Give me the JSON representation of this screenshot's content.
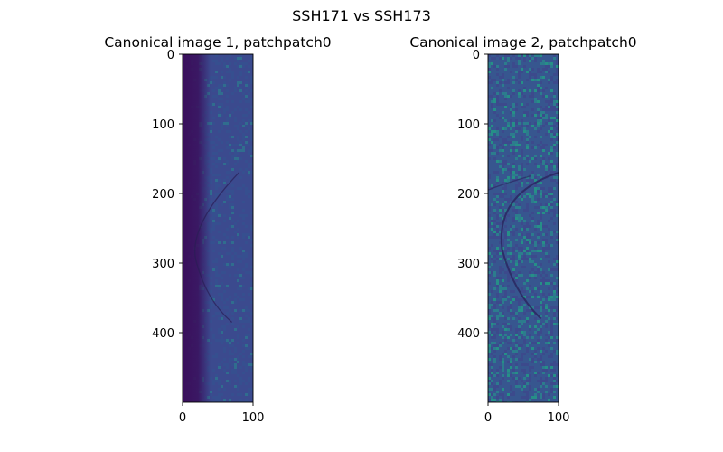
{
  "figure": {
    "title": "SSH171 vs SSH173"
  },
  "chart_data": [
    {
      "type": "heatmap",
      "title": "Canonical image 1, patchpatch0",
      "xlabel": "",
      "ylabel": "",
      "xlim": [
        0,
        100
      ],
      "ylim": [
        500,
        0
      ],
      "x_ticks": [
        0,
        100
      ],
      "y_ticks": [
        0,
        100,
        200,
        300,
        400
      ],
      "grid": false,
      "colormap": "viridis",
      "content": "noisy texture, darker left band, faint curved arc",
      "colors": {
        "band": "#3a0f5c",
        "field": "#3b4a8e",
        "field_alt": "#36518f",
        "speck": "#2e7a8e",
        "arc": "#2a1e55"
      }
    },
    {
      "type": "heatmap",
      "title": "Canonical image 2, patchpatch0",
      "xlabel": "",
      "ylabel": "",
      "xlim": [
        0,
        100
      ],
      "ylim": [
        500,
        0
      ],
      "x_ticks": [
        0,
        100
      ],
      "y_ticks": [
        0,
        100,
        200,
        300,
        400
      ],
      "grid": false,
      "colormap": "viridis",
      "content": "noisy texture, prominent curved arc",
      "colors": {
        "field": "#37568f",
        "field_alt": "#3f478b",
        "speck": "#2a8a8c",
        "speck_alt": "#22a384",
        "arc": "#2b2a63"
      }
    }
  ]
}
